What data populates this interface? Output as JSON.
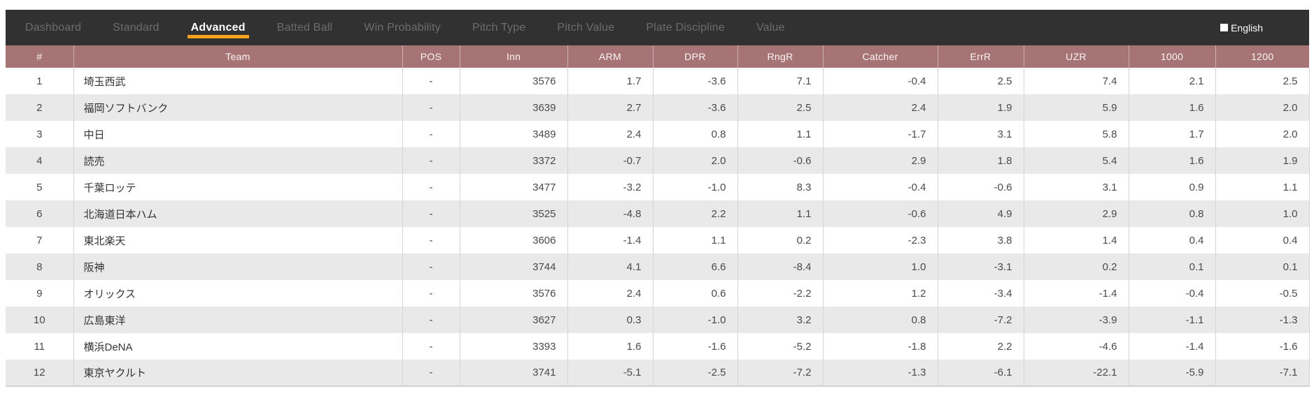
{
  "nav": {
    "tabs": [
      {
        "label": "Dashboard",
        "active": false
      },
      {
        "label": "Standard",
        "active": false
      },
      {
        "label": "Advanced",
        "active": true
      },
      {
        "label": "Batted Ball",
        "active": false
      },
      {
        "label": "Win Probability",
        "active": false
      },
      {
        "label": "Pitch Type",
        "active": false
      },
      {
        "label": "Pitch Value",
        "active": false
      },
      {
        "label": "Plate Discipline",
        "active": false
      },
      {
        "label": "Value",
        "active": false
      }
    ],
    "language": {
      "label": "English"
    }
  },
  "colors": {
    "accent_orange": "#f6a21d",
    "tabbar_background": "#313131",
    "table_header_background": "#a67474",
    "row_alternate_background": "#e9e9e9"
  },
  "table": {
    "columns": [
      {
        "key": "rank",
        "label": "#"
      },
      {
        "key": "team",
        "label": "Team"
      },
      {
        "key": "pos",
        "label": "POS"
      },
      {
        "key": "inn",
        "label": "Inn"
      },
      {
        "key": "arm",
        "label": "ARM"
      },
      {
        "key": "dpr",
        "label": "DPR"
      },
      {
        "key": "rngr",
        "label": "RngR"
      },
      {
        "key": "catcher",
        "label": "Catcher"
      },
      {
        "key": "errr",
        "label": "ErrR"
      },
      {
        "key": "uzr",
        "label": "UZR"
      },
      {
        "key": "r1000",
        "label": "1000"
      },
      {
        "key": "r1200",
        "label": "1200"
      }
    ],
    "rows": [
      {
        "rank": "1",
        "team": "埼玉西武",
        "pos": "-",
        "inn": "3576",
        "arm": "1.7",
        "dpr": "-3.6",
        "rngr": "7.1",
        "catcher": "-0.4",
        "errr": "2.5",
        "uzr": "7.4",
        "r1000": "2.1",
        "r1200": "2.5"
      },
      {
        "rank": "2",
        "team": "福岡ソフトバンク",
        "pos": "-",
        "inn": "3639",
        "arm": "2.7",
        "dpr": "-3.6",
        "rngr": "2.5",
        "catcher": "2.4",
        "errr": "1.9",
        "uzr": "5.9",
        "r1000": "1.6",
        "r1200": "2.0"
      },
      {
        "rank": "3",
        "team": "中日",
        "pos": "-",
        "inn": "3489",
        "arm": "2.4",
        "dpr": "0.8",
        "rngr": "1.1",
        "catcher": "-1.7",
        "errr": "3.1",
        "uzr": "5.8",
        "r1000": "1.7",
        "r1200": "2.0"
      },
      {
        "rank": "4",
        "team": "読売",
        "pos": "-",
        "inn": "3372",
        "arm": "-0.7",
        "dpr": "2.0",
        "rngr": "-0.6",
        "catcher": "2.9",
        "errr": "1.8",
        "uzr": "5.4",
        "r1000": "1.6",
        "r1200": "1.9"
      },
      {
        "rank": "5",
        "team": "千葉ロッテ",
        "pos": "-",
        "inn": "3477",
        "arm": "-3.2",
        "dpr": "-1.0",
        "rngr": "8.3",
        "catcher": "-0.4",
        "errr": "-0.6",
        "uzr": "3.1",
        "r1000": "0.9",
        "r1200": "1.1"
      },
      {
        "rank": "6",
        "team": "北海道日本ハム",
        "pos": "-",
        "inn": "3525",
        "arm": "-4.8",
        "dpr": "2.2",
        "rngr": "1.1",
        "catcher": "-0.6",
        "errr": "4.9",
        "uzr": "2.9",
        "r1000": "0.8",
        "r1200": "1.0"
      },
      {
        "rank": "7",
        "team": "東北楽天",
        "pos": "-",
        "inn": "3606",
        "arm": "-1.4",
        "dpr": "1.1",
        "rngr": "0.2",
        "catcher": "-2.3",
        "errr": "3.8",
        "uzr": "1.4",
        "r1000": "0.4",
        "r1200": "0.4"
      },
      {
        "rank": "8",
        "team": "阪神",
        "pos": "-",
        "inn": "3744",
        "arm": "4.1",
        "dpr": "6.6",
        "rngr": "-8.4",
        "catcher": "1.0",
        "errr": "-3.1",
        "uzr": "0.2",
        "r1000": "0.1",
        "r1200": "0.1"
      },
      {
        "rank": "9",
        "team": "オリックス",
        "pos": "-",
        "inn": "3576",
        "arm": "2.4",
        "dpr": "0.6",
        "rngr": "-2.2",
        "catcher": "1.2",
        "errr": "-3.4",
        "uzr": "-1.4",
        "r1000": "-0.4",
        "r1200": "-0.5"
      },
      {
        "rank": "10",
        "team": "広島東洋",
        "pos": "-",
        "inn": "3627",
        "arm": "0.3",
        "dpr": "-1.0",
        "rngr": "3.2",
        "catcher": "0.8",
        "errr": "-7.2",
        "uzr": "-3.9",
        "r1000": "-1.1",
        "r1200": "-1.3"
      },
      {
        "rank": "11",
        "team": "横浜DeNA",
        "pos": "-",
        "inn": "3393",
        "arm": "1.6",
        "dpr": "-1.6",
        "rngr": "-5.2",
        "catcher": "-1.8",
        "errr": "2.2",
        "uzr": "-4.6",
        "r1000": "-1.4",
        "r1200": "-1.6"
      },
      {
        "rank": "12",
        "team": "東京ヤクルト",
        "pos": "-",
        "inn": "3741",
        "arm": "-5.1",
        "dpr": "-2.5",
        "rngr": "-7.2",
        "catcher": "-1.3",
        "errr": "-6.1",
        "uzr": "-22.1",
        "r1000": "-5.9",
        "r1200": "-7.1"
      }
    ]
  }
}
